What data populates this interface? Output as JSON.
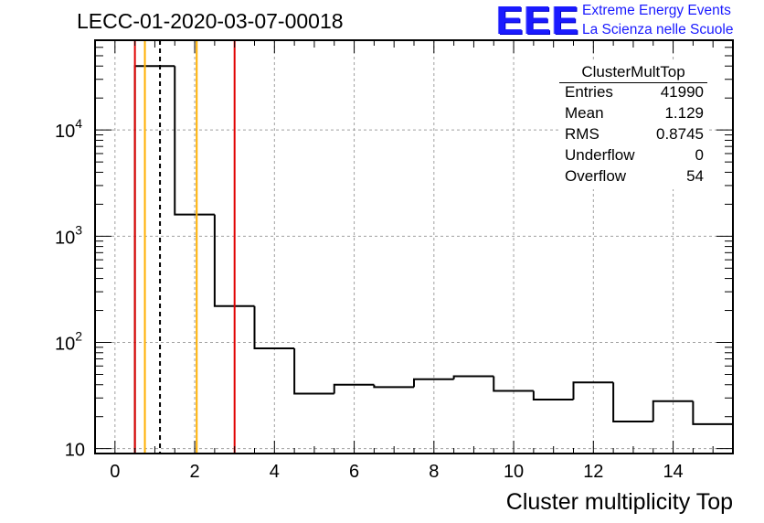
{
  "header": {
    "title": "LECC-01-2020-03-07-00018",
    "logo_text": "EEE",
    "logo_line1": "Extreme Energy Events",
    "logo_line2": "La Scienza nelle Scuole",
    "logo_color": "#1a1aff"
  },
  "stats": {
    "title": "ClusterMultTop",
    "rows": [
      {
        "label": "Entries",
        "value": "41990"
      },
      {
        "label": "Mean",
        "value": "1.129"
      },
      {
        "label": "RMS",
        "value": "0.8745"
      },
      {
        "label": "Underflow",
        "value": "0"
      },
      {
        "label": "Overflow",
        "value": "54"
      }
    ]
  },
  "chart_data": {
    "type": "bar",
    "histogram_style": "step",
    "title": "LECC-01-2020-03-07-00018",
    "xlabel": "Cluster multiplicity Top",
    "ylabel": "",
    "xlim": [
      -0.5,
      15.5
    ],
    "ylim": [
      9,
      70000
    ],
    "y_scale": "log",
    "grid": true,
    "x_ticks": [
      0,
      2,
      4,
      6,
      8,
      10,
      12,
      14
    ],
    "y_ticks": [
      {
        "value": 10,
        "base": "10",
        "exp": ""
      },
      {
        "value": 100,
        "base": "10",
        "exp": "2"
      },
      {
        "value": 1000,
        "base": "10",
        "exp": "3"
      },
      {
        "value": 10000,
        "base": "10",
        "exp": "4"
      }
    ],
    "bin_edges": [
      0.5,
      1.5,
      2.5,
      3.5,
      4.5,
      5.5,
      6.5,
      7.5,
      8.5,
      9.5,
      10.5,
      11.5,
      12.5,
      13.5,
      14.5,
      15.5
    ],
    "counts": [
      40000,
      1600,
      220,
      88,
      33,
      40,
      38,
      45,
      48,
      35,
      29,
      42,
      18,
      28,
      17
    ],
    "lines": [
      {
        "x": 0.5,
        "color": "#e00000",
        "style": "solid"
      },
      {
        "x": 0.75,
        "color": "#ffb000",
        "style": "solid"
      },
      {
        "x": 1.129,
        "color": "#000000",
        "style": "dashed"
      },
      {
        "x": 2.05,
        "color": "#ffb000",
        "style": "solid"
      },
      {
        "x": 3.0,
        "color": "#e00000",
        "style": "solid"
      }
    ]
  }
}
